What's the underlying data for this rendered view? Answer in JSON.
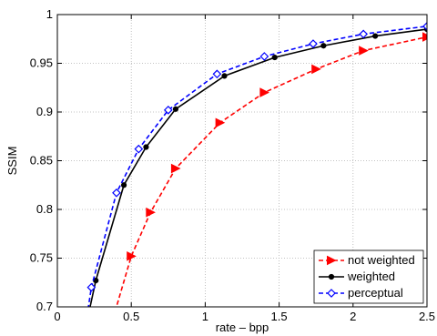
{
  "chart_data": {
    "type": "line",
    "xlabel": "rate – bpp",
    "ylabel": "SSIM",
    "xlim": [
      0,
      2.5
    ],
    "ylim": [
      0.7,
      1.0
    ],
    "xticks": [
      0,
      0.5,
      1,
      1.5,
      2,
      2.5
    ],
    "xtick_labels": [
      "0",
      "0.5",
      "1",
      "1.5",
      "2",
      "2.5"
    ],
    "yticks": [
      0.7,
      0.75,
      0.8,
      0.85,
      0.9,
      0.95,
      1.0
    ],
    "ytick_labels": [
      "0.7",
      "0.75",
      "0.8",
      "0.85",
      "0.9",
      "0.95",
      "1"
    ],
    "grid": true,
    "legend_position": "bottom-right",
    "series": [
      {
        "name": "not weighted",
        "color": "#ff0000",
        "line_style": "dashed",
        "marker": "triangle-right",
        "x": [
          0.39,
          0.5,
          0.63,
          0.8,
          1.1,
          1.4,
          1.75,
          2.07,
          2.5
        ],
        "y": [
          0.695,
          0.752,
          0.797,
          0.842,
          0.889,
          0.92,
          0.944,
          0.963,
          0.977
        ]
      },
      {
        "name": "weighted",
        "color": "#000000",
        "line_style": "solid",
        "marker": "dot",
        "x": [
          0.2,
          0.26,
          0.45,
          0.6,
          0.8,
          1.13,
          1.47,
          1.8,
          2.15,
          2.5
        ],
        "y": [
          0.685,
          0.727,
          0.825,
          0.864,
          0.903,
          0.937,
          0.956,
          0.968,
          0.978,
          0.985
        ]
      },
      {
        "name": "perceptual",
        "color": "#0000ff",
        "line_style": "dashed",
        "marker": "diamond",
        "x": [
          0.2,
          0.23,
          0.4,
          0.55,
          0.75,
          1.08,
          1.4,
          1.73,
          2.07,
          2.5
        ],
        "y": [
          0.69,
          0.72,
          0.817,
          0.862,
          0.902,
          0.939,
          0.957,
          0.97,
          0.98,
          0.988
        ]
      }
    ]
  }
}
